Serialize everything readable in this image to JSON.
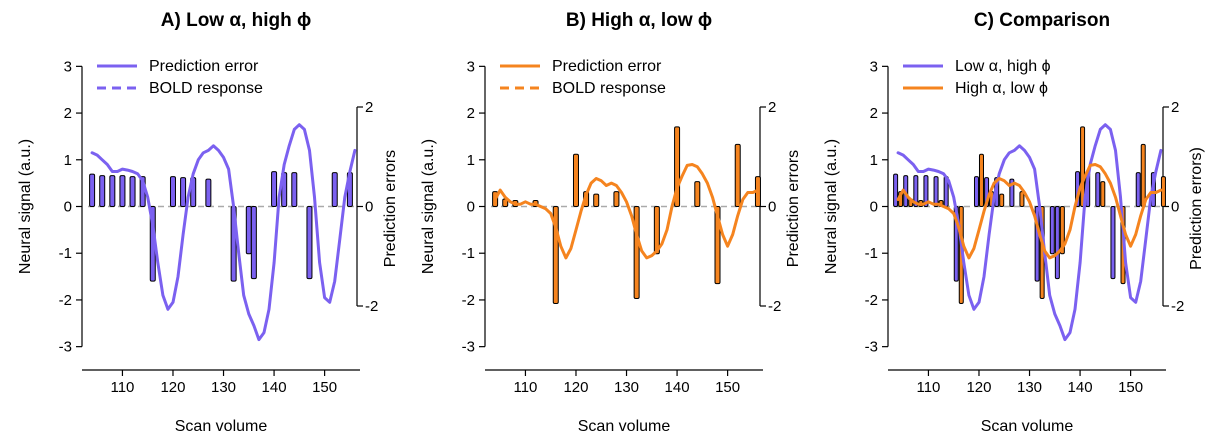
{
  "colors": {
    "purple": "#7b61f0",
    "orange": "#f5841f",
    "zero_line": "#aaaaaa",
    "axis": "#000000"
  },
  "chart_data": [
    {
      "type": "line",
      "title": "A) Low α, high ϕ",
      "xlabel": "Scan volume",
      "ylabel": "Neural signal (a.u.)",
      "y2label": "Prediction errors",
      "xlim": [
        102,
        157
      ],
      "ylim": [
        -3.2,
        3.2
      ],
      "y2lim": [
        -2,
        2
      ],
      "xticks": [
        110,
        120,
        130,
        140,
        150
      ],
      "yticks": [
        -3,
        -2,
        -1,
        0,
        1,
        2,
        3
      ],
      "y2ticks": [
        -2,
        0,
        2
      ],
      "legend": {
        "position": "top-left",
        "entries": [
          {
            "label": "Prediction error",
            "style": "solid",
            "color": "#7b61f0"
          },
          {
            "label": "BOLD response",
            "style": "dashed",
            "color": "#7b61f0"
          }
        ]
      },
      "lines": [
        {
          "color": "#7b61f0",
          "x": [
            104,
            105,
            106,
            107,
            108,
            109,
            110,
            111,
            112,
            113,
            114,
            115,
            116,
            117,
            118,
            119,
            120,
            121,
            122,
            123,
            124,
            125,
            126,
            127,
            128,
            129,
            130,
            131,
            132,
            133,
            134,
            135,
            136,
            137,
            138,
            139,
            140,
            141,
            142,
            143,
            144,
            145,
            146,
            147,
            148,
            149,
            150,
            151,
            152,
            153,
            154,
            155,
            156
          ],
          "y": [
            1.15,
            1.1,
            1.0,
            0.9,
            0.75,
            0.75,
            0.8,
            0.78,
            0.75,
            0.7,
            0.55,
            0.2,
            -0.4,
            -1.2,
            -1.9,
            -2.2,
            -2.05,
            -1.5,
            -0.6,
            0.2,
            0.7,
            1.0,
            1.15,
            1.2,
            1.3,
            1.2,
            1.05,
            0.8,
            0.0,
            -1.0,
            -1.9,
            -2.3,
            -2.55,
            -2.85,
            -2.7,
            -2.2,
            -1.2,
            0.2,
            0.9,
            1.3,
            1.65,
            1.75,
            1.65,
            1.2,
            0.2,
            -1.2,
            -1.95,
            -2.05,
            -1.6,
            -0.7,
            0.2,
            0.75,
            1.2
          ]
        }
      ],
      "stems": [
        {
          "color": "#7b61f0",
          "x": [
            104,
            106,
            108,
            110,
            112,
            114,
            116,
            120,
            122,
            124,
            127,
            132,
            135,
            136,
            140,
            142,
            144,
            147,
            152,
            155
          ],
          "values": [
            0.65,
            0.62,
            0.62,
            0.62,
            0.6,
            0.6,
            -1.5,
            0.6,
            0.58,
            0.58,
            0.55,
            -1.5,
            -0.95,
            -1.45,
            0.7,
            0.68,
            0.68,
            -1.45,
            0.68,
            0.68
          ]
        }
      ]
    },
    {
      "type": "line",
      "title": "B) High α, low ϕ",
      "xlabel": "Scan volume",
      "ylabel": "Neural signal (a.u.)",
      "y2label": "Prediction errors",
      "xlim": [
        102,
        157
      ],
      "ylim": [
        -3.2,
        3.2
      ],
      "y2lim": [
        -2,
        2
      ],
      "xticks": [
        110,
        120,
        130,
        140,
        150
      ],
      "yticks": [
        -3,
        -2,
        -1,
        0,
        1,
        2,
        3
      ],
      "y2ticks": [
        -2,
        0,
        2
      ],
      "legend": {
        "position": "top-left",
        "entries": [
          {
            "label": "Prediction error",
            "style": "solid",
            "color": "#f5841f"
          },
          {
            "label": "BOLD response",
            "style": "dashed",
            "color": "#f5841f"
          }
        ]
      },
      "lines": [
        {
          "color": "#f5841f",
          "x": [
            104,
            105,
            106,
            107,
            108,
            109,
            110,
            111,
            112,
            113,
            114,
            115,
            116,
            117,
            118,
            119,
            120,
            121,
            122,
            123,
            124,
            125,
            126,
            127,
            128,
            129,
            130,
            131,
            132,
            133,
            134,
            135,
            136,
            137,
            138,
            139,
            140,
            141,
            142,
            143,
            144,
            145,
            146,
            147,
            148,
            149,
            150,
            151,
            152,
            153,
            154,
            155,
            156
          ],
          "y": [
            0.15,
            0.35,
            0.2,
            0.1,
            0.05,
            0.05,
            0.1,
            0.05,
            0.05,
            0.0,
            -0.05,
            -0.15,
            -0.45,
            -0.85,
            -1.1,
            -0.9,
            -0.5,
            -0.1,
            0.25,
            0.5,
            0.6,
            0.55,
            0.45,
            0.5,
            0.45,
            0.3,
            0.1,
            -0.2,
            -0.6,
            -0.95,
            -1.1,
            -1.05,
            -0.95,
            -0.8,
            -0.5,
            0.0,
            0.4,
            0.65,
            0.88,
            0.9,
            0.85,
            0.7,
            0.5,
            0.2,
            -0.2,
            -0.6,
            -0.85,
            -0.6,
            -0.2,
            0.15,
            0.3,
            0.3,
            0.35
          ]
        }
      ],
      "stems": [
        {
          "color": "#f5841f",
          "x": [
            104,
            106,
            108,
            112,
            116,
            120,
            122,
            124,
            128,
            132,
            136,
            140,
            144,
            148,
            152,
            156
          ],
          "values": [
            0.3,
            0.15,
            0.12,
            0.12,
            -1.95,
            1.05,
            0.3,
            0.25,
            0.3,
            -1.85,
            -0.95,
            1.6,
            0.5,
            -1.55,
            1.25,
            0.6
          ]
        }
      ]
    },
    {
      "type": "line",
      "title": "C) Comparison",
      "xlabel": "Scan volume",
      "ylabel": "Neural signal (a.u.)",
      "y2label": "Prediction errors)",
      "xlim": [
        102,
        157
      ],
      "ylim": [
        -3.2,
        3.2
      ],
      "y2lim": [
        -2,
        2
      ],
      "xticks": [
        110,
        120,
        130,
        140,
        150
      ],
      "yticks": [
        -3,
        -2,
        -1,
        0,
        1,
        2,
        3
      ],
      "y2ticks": [
        -2,
        0,
        2
      ],
      "legend": {
        "position": "top-left",
        "entries": [
          {
            "label": "Low α, high ϕ",
            "style": "solid",
            "color": "#7b61f0"
          },
          {
            "label": "High α, low ϕ",
            "style": "solid",
            "color": "#f5841f"
          }
        ]
      },
      "lines": [
        {
          "color": "#7b61f0",
          "x": [
            104,
            105,
            106,
            107,
            108,
            109,
            110,
            111,
            112,
            113,
            114,
            115,
            116,
            117,
            118,
            119,
            120,
            121,
            122,
            123,
            124,
            125,
            126,
            127,
            128,
            129,
            130,
            131,
            132,
            133,
            134,
            135,
            136,
            137,
            138,
            139,
            140,
            141,
            142,
            143,
            144,
            145,
            146,
            147,
            148,
            149,
            150,
            151,
            152,
            153,
            154,
            155,
            156
          ],
          "y": [
            1.15,
            1.1,
            1.0,
            0.9,
            0.75,
            0.75,
            0.8,
            0.78,
            0.75,
            0.7,
            0.55,
            0.2,
            -0.4,
            -1.2,
            -1.9,
            -2.2,
            -2.05,
            -1.5,
            -0.6,
            0.2,
            0.7,
            1.0,
            1.15,
            1.2,
            1.3,
            1.2,
            1.05,
            0.8,
            0.0,
            -1.0,
            -1.9,
            -2.3,
            -2.55,
            -2.85,
            -2.7,
            -2.2,
            -1.2,
            0.2,
            0.9,
            1.3,
            1.65,
            1.75,
            1.65,
            1.2,
            0.2,
            -1.2,
            -1.95,
            -2.05,
            -1.6,
            -0.7,
            0.2,
            0.75,
            1.2
          ]
        },
        {
          "color": "#f5841f",
          "x": [
            104,
            105,
            106,
            107,
            108,
            109,
            110,
            111,
            112,
            113,
            114,
            115,
            116,
            117,
            118,
            119,
            120,
            121,
            122,
            123,
            124,
            125,
            126,
            127,
            128,
            129,
            130,
            131,
            132,
            133,
            134,
            135,
            136,
            137,
            138,
            139,
            140,
            141,
            142,
            143,
            144,
            145,
            146,
            147,
            148,
            149,
            150,
            151,
            152,
            153,
            154,
            155,
            156
          ],
          "y": [
            0.15,
            0.35,
            0.2,
            0.1,
            0.05,
            0.05,
            0.1,
            0.05,
            0.05,
            0.0,
            -0.05,
            -0.15,
            -0.45,
            -0.85,
            -1.1,
            -0.9,
            -0.5,
            -0.1,
            0.25,
            0.5,
            0.6,
            0.55,
            0.45,
            0.5,
            0.45,
            0.3,
            0.1,
            -0.2,
            -0.6,
            -0.95,
            -1.1,
            -1.05,
            -0.95,
            -0.8,
            -0.5,
            0.0,
            0.4,
            0.65,
            0.88,
            0.9,
            0.85,
            0.7,
            0.5,
            0.2,
            -0.2,
            -0.6,
            -0.85,
            -0.6,
            -0.2,
            0.15,
            0.3,
            0.3,
            0.35
          ]
        }
      ],
      "stems": [
        {
          "color": "#7b61f0",
          "x": [
            104,
            106,
            108,
            110,
            112,
            114,
            116,
            120,
            122,
            124,
            127,
            132,
            135,
            136,
            140,
            142,
            144,
            147,
            152,
            155
          ],
          "values": [
            0.65,
            0.62,
            0.62,
            0.62,
            0.6,
            0.6,
            -1.5,
            0.6,
            0.58,
            0.58,
            0.55,
            -1.5,
            -0.95,
            -1.45,
            0.7,
            0.68,
            0.68,
            -1.45,
            0.68,
            0.68
          ]
        },
        {
          "color": "#f5841f",
          "x": [
            104,
            106,
            108,
            112,
            116,
            120,
            122,
            124,
            128,
            132,
            136,
            140,
            144,
            148,
            152,
            156
          ],
          "values": [
            0.3,
            0.15,
            0.12,
            0.12,
            -1.95,
            1.05,
            0.3,
            0.25,
            0.3,
            -1.85,
            -0.95,
            1.6,
            0.5,
            -1.55,
            1.25,
            0.6
          ]
        }
      ]
    }
  ]
}
